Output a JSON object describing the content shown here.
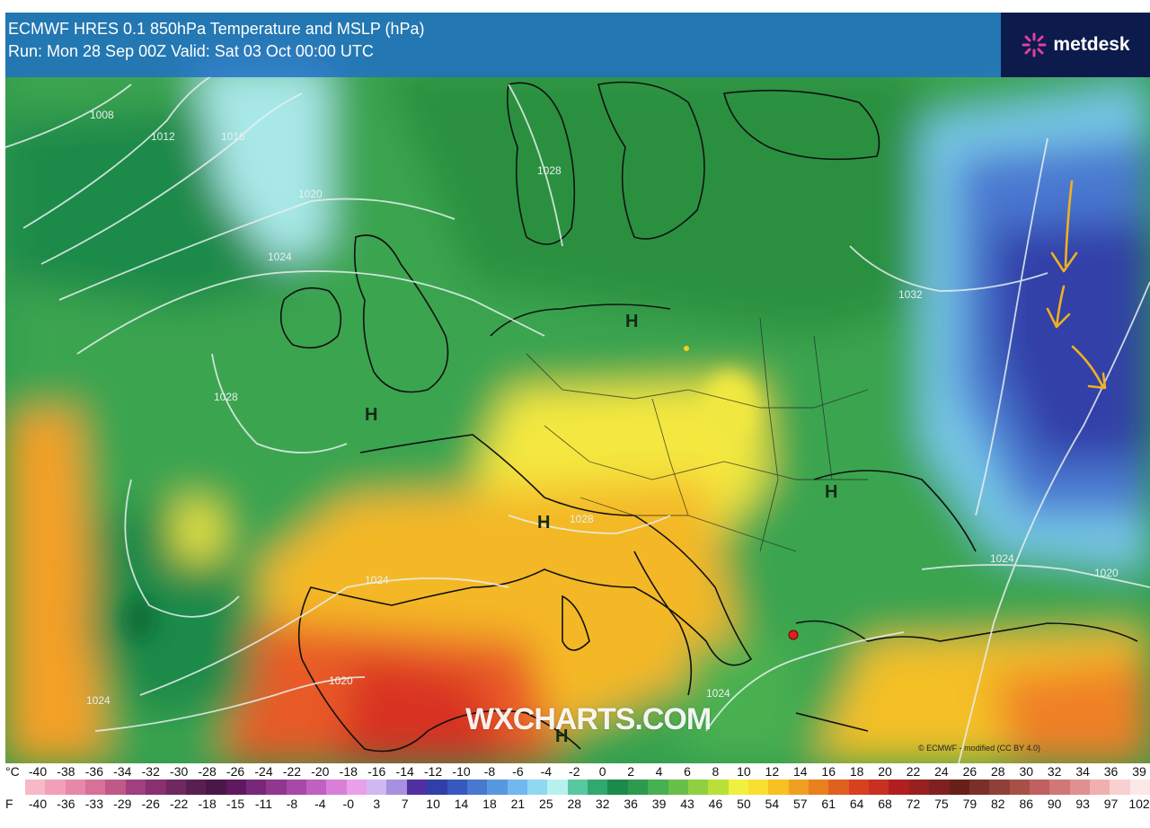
{
  "header": {
    "title_line_1": "ECMWF HRES 0.1 850hPa Temperature and MSLP (hPa)",
    "title_line_2": "Run: Mon 28 Sep 00Z Valid: Sat 03 Oct 00:00 UTC"
  },
  "brand": {
    "name": "metdesk",
    "icon": "burst-logo-icon",
    "accent": "#e040a0"
  },
  "watermark": "WXCHARTS.COM",
  "copyright": "© ECMWF - modified (CC BY 4.0)",
  "map": {
    "pressure_centres": [
      "H",
      "H",
      "H",
      "H",
      "H"
    ],
    "isobar_labels": [
      "1008",
      "1012",
      "1016",
      "1020",
      "1024",
      "1028",
      "1028",
      "1028",
      "1024",
      "1024",
      "1020",
      "1024",
      "1032",
      "1024",
      "1020"
    ],
    "annotation_arrows": 3,
    "annotation_color": "#f0b020",
    "marker_color": "#e02020"
  },
  "legend": {
    "c_label": "°C",
    "f_label": "F",
    "celsius_ticks": [
      "-40",
      "-38",
      "-36",
      "-34",
      "-32",
      "-30",
      "-28",
      "-26",
      "-24",
      "-22",
      "-20",
      "-18",
      "-16",
      "-14",
      "-12",
      "-10",
      "-8",
      "-6",
      "-4",
      "-2",
      "0",
      "2",
      "4",
      "6",
      "8",
      "10",
      "12",
      "14",
      "16",
      "18",
      "20",
      "22",
      "24",
      "26",
      "28",
      "30",
      "32",
      "34",
      "36",
      "39"
    ],
    "fahrenheit_ticks": [
      "-40",
      "-36",
      "-33",
      "-29",
      "-26",
      "-22",
      "-18",
      "-15",
      "-11",
      "-8",
      "-4",
      "-0",
      "3",
      "7",
      "10",
      "14",
      "18",
      "21",
      "25",
      "28",
      "32",
      "36",
      "39",
      "43",
      "46",
      "50",
      "54",
      "57",
      "61",
      "64",
      "68",
      "72",
      "75",
      "79",
      "82",
      "86",
      "90",
      "93",
      "97",
      "102"
    ],
    "colors": [
      "#f7b8c8",
      "#f2a0b8",
      "#e888a8",
      "#d87098",
      "#c05888",
      "#a04080",
      "#883070",
      "#702860",
      "#582050",
      "#4a1848",
      "#601860",
      "#782878",
      "#903890",
      "#a848a8",
      "#c060c0",
      "#d880d8",
      "#e8a0e8",
      "#d0b8f0",
      "#a890e0",
      "#5030a0",
      "#3040a8",
      "#3858c0",
      "#4878d0",
      "#5898e0",
      "#70b8f0",
      "#90d8f0",
      "#b8f0f0",
      "#58c8a0",
      "#30a870",
      "#1c8a4a",
      "#2e9a4e",
      "#48b050",
      "#68c048",
      "#90d040",
      "#b8e038",
      "#f0f040",
      "#f8e030",
      "#f8c020",
      "#f0a020",
      "#e88020",
      "#e06020",
      "#d84020",
      "#c83020",
      "#b02020",
      "#982020",
      "#802020",
      "#682018",
      "#7a3028",
      "#904038",
      "#a85048",
      "#c06060",
      "#d07878",
      "#e09090",
      "#f0b0b0",
      "#f8d0d0",
      "#fce8e8"
    ]
  }
}
